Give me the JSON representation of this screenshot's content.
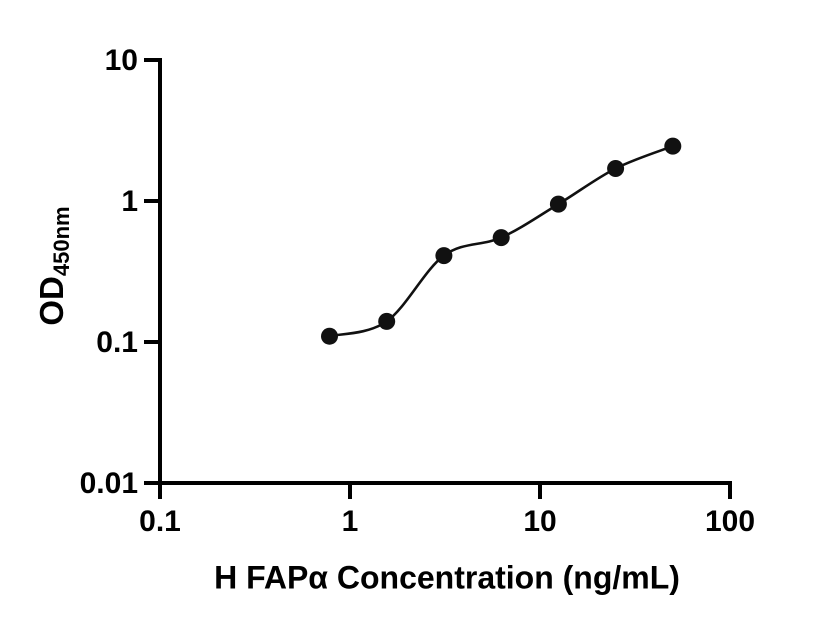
{
  "figure": {
    "background": "#ffffff"
  },
  "chart_data": {
    "type": "scatter",
    "title": "",
    "xlabel": "H FAPα Concentration (ng/mL)",
    "ylabel": "OD",
    "ylabel_subscript": "450nm",
    "x_scale": "log10",
    "y_scale": "log10",
    "xlim": [
      0.1,
      100
    ],
    "ylim": [
      0.01,
      10
    ],
    "grid": false,
    "legend": "none",
    "axis_color": "#000000",
    "marker_color": "#111111",
    "line_color": "#111111",
    "x_ticks": [
      {
        "value": 0.1,
        "label": "0.1"
      },
      {
        "value": 1,
        "label": "1"
      },
      {
        "value": 10,
        "label": "10"
      },
      {
        "value": 100,
        "label": "100"
      }
    ],
    "y_ticks": [
      {
        "value": 0.01,
        "label": "0.01"
      },
      {
        "value": 0.1,
        "label": "0.1"
      },
      {
        "value": 1,
        "label": "1"
      },
      {
        "value": 10,
        "label": "10"
      }
    ],
    "points": [
      {
        "x": 0.78,
        "y": 0.11
      },
      {
        "x": 1.56,
        "y": 0.14
      },
      {
        "x": 3.12,
        "y": 0.41
      },
      {
        "x": 6.25,
        "y": 0.55
      },
      {
        "x": 12.5,
        "y": 0.95
      },
      {
        "x": 25,
        "y": 1.7
      },
      {
        "x": 50,
        "y": 2.45
      }
    ],
    "curve": "smooth-fit-through-points"
  }
}
